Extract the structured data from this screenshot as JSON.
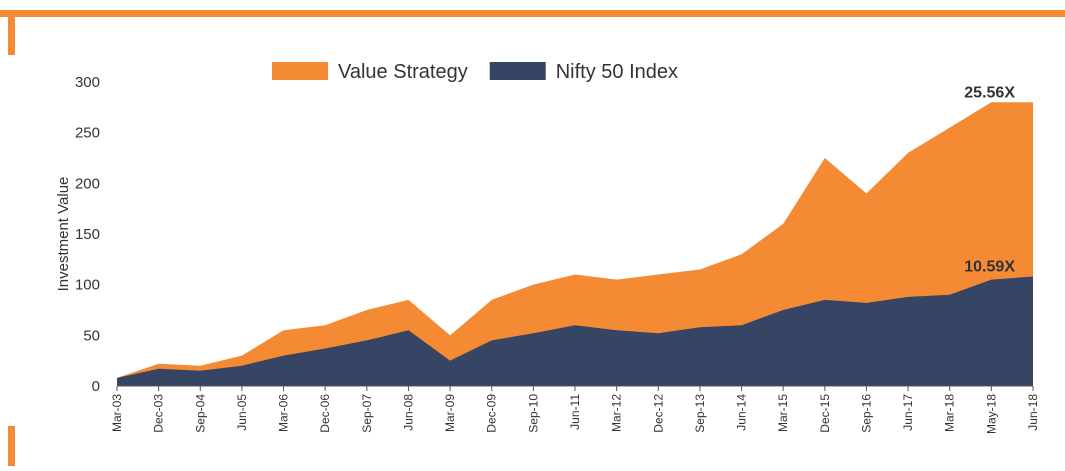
{
  "chart_data": {
    "type": "area",
    "y_label": "Investment Value",
    "categories": [
      "Mar-03",
      "Dec-03",
      "Sep-04",
      "Jun-05",
      "Mar-06",
      "Dec-06",
      "Sep-07",
      "Jun-08",
      "Mar-09",
      "Dec-09",
      "Sep-10",
      "Jun-11",
      "Mar-12",
      "Dec-12",
      "Sep-13",
      "Jun-14",
      "Mar-15",
      "Dec-15",
      "Sep-16",
      "Jun-17",
      "Mar-18",
      "May-18",
      "Jun-18"
    ],
    "series": [
      {
        "name": "Value Strategy",
        "color": "#f58a34",
        "values": [
          8,
          22,
          20,
          30,
          55,
          60,
          75,
          85,
          50,
          85,
          100,
          110,
          105,
          110,
          115,
          130,
          160,
          225,
          190,
          230,
          255,
          280,
          280
        ]
      },
      {
        "name": "Nifty 50 Index",
        "color": "#354563",
        "values": [
          8,
          17,
          15,
          20,
          30,
          37,
          45,
          55,
          25,
          45,
          52,
          60,
          55,
          52,
          58,
          60,
          75,
          85,
          82,
          88,
          90,
          105,
          108
        ]
      }
    ],
    "annotations": [
      "25.56X",
      "10.59X"
    ],
    "ylim": [
      0,
      300
    ],
    "yticks": [
      0,
      50,
      100,
      150,
      200,
      250,
      300
    ]
  }
}
